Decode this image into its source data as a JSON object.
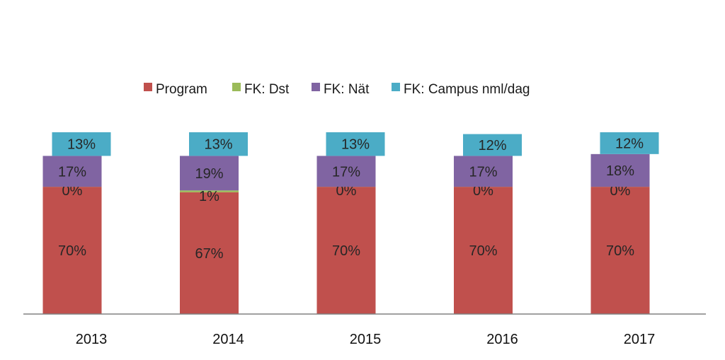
{
  "chart_data": {
    "type": "bar",
    "subtype": "waterfall-stacked",
    "title": "",
    "xlabel": "",
    "ylabel": "",
    "ylim": [
      0,
      100
    ],
    "grid": false,
    "legend_position": "top-center",
    "categories": [
      "2013",
      "2014",
      "2015",
      "2016",
      "2017"
    ],
    "series": [
      {
        "name": "Program",
        "color": "#C0504D",
        "values": [
          70,
          67,
          70,
          70,
          70
        ],
        "labels": [
          "70%",
          "67%",
          "70%",
          "70%",
          "70%"
        ]
      },
      {
        "name": "FK: Dst",
        "color": "#9BBB59",
        "values": [
          0,
          1,
          0,
          0,
          0
        ],
        "labels": [
          "0%",
          "1%",
          "0%",
          "0%",
          "0%"
        ]
      },
      {
        "name": "FK: Nät",
        "color": "#8064A2",
        "values": [
          17,
          19,
          17,
          17,
          18
        ],
        "labels": [
          "17%",
          "19%",
          "17%",
          "17%",
          "18%"
        ]
      },
      {
        "name": "FK: Campus nml/dag",
        "color": "#4BACC6",
        "values": [
          13,
          13,
          13,
          12,
          12
        ],
        "labels": [
          "13%",
          "13%",
          "13%",
          "12%",
          "12%"
        ]
      }
    ]
  }
}
